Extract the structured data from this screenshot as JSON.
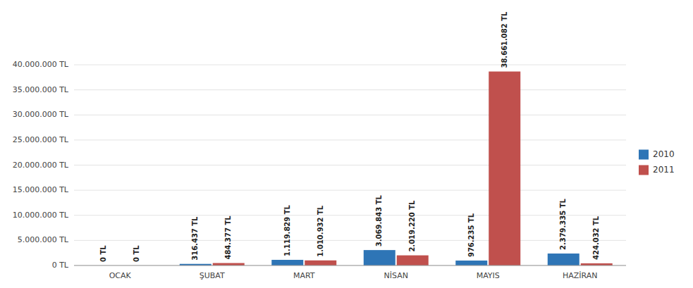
{
  "chart_data": {
    "type": "bar",
    "categories": [
      "OCAK",
      "ŞUBAT",
      "MART",
      "NİSAN",
      "MAYIS",
      "HAZİRAN"
    ],
    "series": [
      {
        "name": "2010",
        "color": "#2E75B6",
        "values": [
          0,
          316437,
          1119829,
          3069843,
          976235,
          2379335
        ],
        "value_labels": [
          "0 TL",
          "316.437 TL",
          "1.119.829 TL",
          "3.069.843 TL",
          "976.235 TL",
          "2.379.335 TL"
        ]
      },
      {
        "name": "2011",
        "color": "#C0504D",
        "values": [
          0,
          484377,
          1010932,
          2019220,
          38661082,
          424032
        ],
        "value_labels": [
          "0 TL",
          "484.377 TL",
          "1.010.932 TL",
          "2.019.220 TL",
          "38.661.082 TL",
          "424.032 TL"
        ]
      }
    ],
    "ylim": [
      0,
      40000000
    ],
    "yticks": [
      {
        "value": 0,
        "label": "0 TL"
      },
      {
        "value": 5000000,
        "label": "5.000.000 TL"
      },
      {
        "value": 10000000,
        "label": "10.000.000 TL"
      },
      {
        "value": 15000000,
        "label": "15.000.000 TL"
      },
      {
        "value": 20000000,
        "label": "20.000.000 TL"
      },
      {
        "value": 25000000,
        "label": "25.000.000 TL"
      },
      {
        "value": 30000000,
        "label": "30.000.000 TL"
      },
      {
        "value": 35000000,
        "label": "35.000.000 TL"
      },
      {
        "value": 40000000,
        "label": "40.000.000 TL"
      }
    ],
    "grid": true,
    "legend": "right",
    "data_labels": true
  }
}
